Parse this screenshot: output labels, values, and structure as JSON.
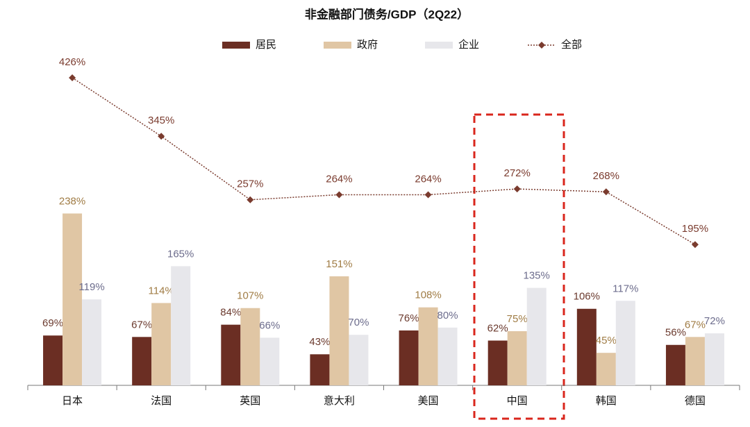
{
  "chart_data": {
    "type": "bar",
    "title": "非金融部门债务/GDP（2Q22）",
    "categories": [
      "日本",
      "法国",
      "英国",
      "意大利",
      "美国",
      "中国",
      "韩国",
      "德国"
    ],
    "ylim": [
      0,
      500
    ],
    "legend": "top",
    "series": [
      {
        "name": "居民",
        "color": "#6b2e23",
        "label_color": "#6b3a2e",
        "values": [
          69,
          67,
          84,
          43,
          76,
          62,
          106,
          56
        ],
        "value_labels": [
          "69%",
          "67%",
          "84%",
          "43%",
          "76%",
          "62%",
          "106%",
          "56%"
        ]
      },
      {
        "name": "政府",
        "color": "#e0c6a4",
        "label_color": "#a07c45",
        "values": [
          238,
          114,
          107,
          151,
          108,
          75,
          45,
          67
        ],
        "value_labels": [
          "238%",
          "114%",
          "107%",
          "151%",
          "108%",
          "75%",
          "45%",
          "67%"
        ]
      },
      {
        "name": "企业",
        "color": "#e7e7eb",
        "label_color": "#6c6c8c",
        "values": [
          119,
          165,
          66,
          70,
          80,
          135,
          117,
          72
        ],
        "value_labels": [
          "119%",
          "165%",
          "66%",
          "70%",
          "80%",
          "135%",
          "117%",
          "72%"
        ]
      },
      {
        "name": "全部",
        "type": "line",
        "color": "#7a3b2e",
        "label_color": "#7a3b2e",
        "values": [
          426,
          345,
          257,
          264,
          264,
          272,
          268,
          195
        ],
        "value_labels": [
          "426%",
          "345%",
          "257%",
          "264%",
          "264%",
          "272%",
          "268%",
          "195%"
        ]
      }
    ]
  }
}
